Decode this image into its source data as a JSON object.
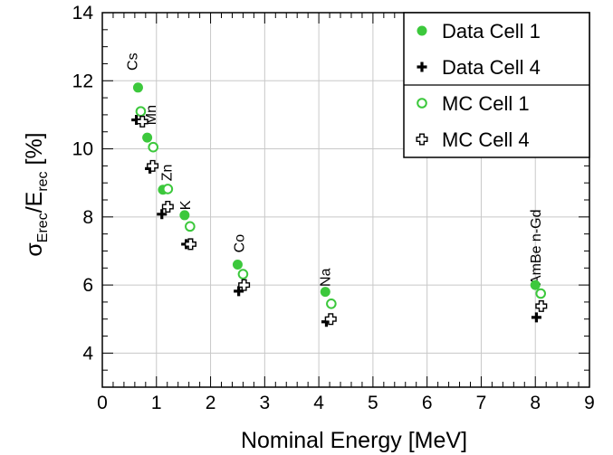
{
  "chart_data": {
    "type": "scatter",
    "title": "",
    "xlabel": "Nominal Energy [MeV]",
    "ylabel": {
      "sigma": "σ",
      "sub1": "Erec",
      "slash": "/E",
      "sub2": "rec",
      "unit": " [%]"
    },
    "xlim": [
      0,
      9
    ],
    "ylim": [
      3,
      14
    ],
    "xticks": [
      0,
      1,
      2,
      3,
      4,
      5,
      6,
      7,
      8,
      9
    ],
    "yticks": [
      4,
      6,
      8,
      10,
      12,
      14
    ],
    "grid": true,
    "legend_position": "top-right",
    "colors": {
      "green": "#3cc83c",
      "black": "#000000"
    },
    "series": [
      {
        "name": "Data Cell 1",
        "marker": "filled-circle",
        "color": "#3cc83c",
        "points": [
          {
            "x": 0.66,
            "y": 11.8
          },
          {
            "x": 0.83,
            "y": 10.33
          },
          {
            "x": 1.12,
            "y": 8.8
          },
          {
            "x": 1.52,
            "y": 8.05
          },
          {
            "x": 2.5,
            "y": 6.6
          },
          {
            "x": 4.12,
            "y": 5.8
          },
          {
            "x": 8.0,
            "y": 6.0
          }
        ]
      },
      {
        "name": "Data Cell 4",
        "marker": "filled-cross",
        "color": "#000000",
        "points": [
          {
            "x": 0.63,
            "y": 10.85
          },
          {
            "x": 0.88,
            "y": 9.42
          },
          {
            "x": 1.1,
            "y": 8.08
          },
          {
            "x": 1.55,
            "y": 7.2
          },
          {
            "x": 2.52,
            "y": 5.82
          },
          {
            "x": 4.14,
            "y": 4.92
          },
          {
            "x": 8.02,
            "y": 5.05
          }
        ]
      },
      {
        "name": "MC Cell 1",
        "marker": "open-circle",
        "color": "#3cc83c",
        "points": [
          {
            "x": 0.71,
            "y": 11.1
          },
          {
            "x": 0.94,
            "y": 10.05
          },
          {
            "x": 1.21,
            "y": 8.82
          },
          {
            "x": 1.62,
            "y": 7.72
          },
          {
            "x": 2.6,
            "y": 6.32
          },
          {
            "x": 4.23,
            "y": 5.45
          },
          {
            "x": 8.1,
            "y": 5.75
          }
        ]
      },
      {
        "name": "MC Cell 4",
        "marker": "open-cross",
        "color": "#000000",
        "points": [
          {
            "x": 0.74,
            "y": 10.8
          },
          {
            "x": 0.93,
            "y": 9.5
          },
          {
            "x": 1.21,
            "y": 8.3
          },
          {
            "x": 1.63,
            "y": 7.2
          },
          {
            "x": 2.62,
            "y": 6.0
          },
          {
            "x": 4.22,
            "y": 5.0
          },
          {
            "x": 8.11,
            "y": 5.38
          }
        ]
      }
    ],
    "annotations": [
      {
        "text": "Cs",
        "x": 0.64,
        "y": 12.3
      },
      {
        "text": "Mn",
        "x": 0.99,
        "y": 10.7
      },
      {
        "text": "Zn",
        "x": 1.28,
        "y": 9.05
      },
      {
        "text": "K",
        "x": 1.62,
        "y": 8.2
      },
      {
        "text": "Co",
        "x": 2.62,
        "y": 6.95
      },
      {
        "text": "Na",
        "x": 4.21,
        "y": 5.95
      },
      {
        "text": "AmBe n-Gd",
        "x": 8.1,
        "y": 6.0
      }
    ]
  }
}
